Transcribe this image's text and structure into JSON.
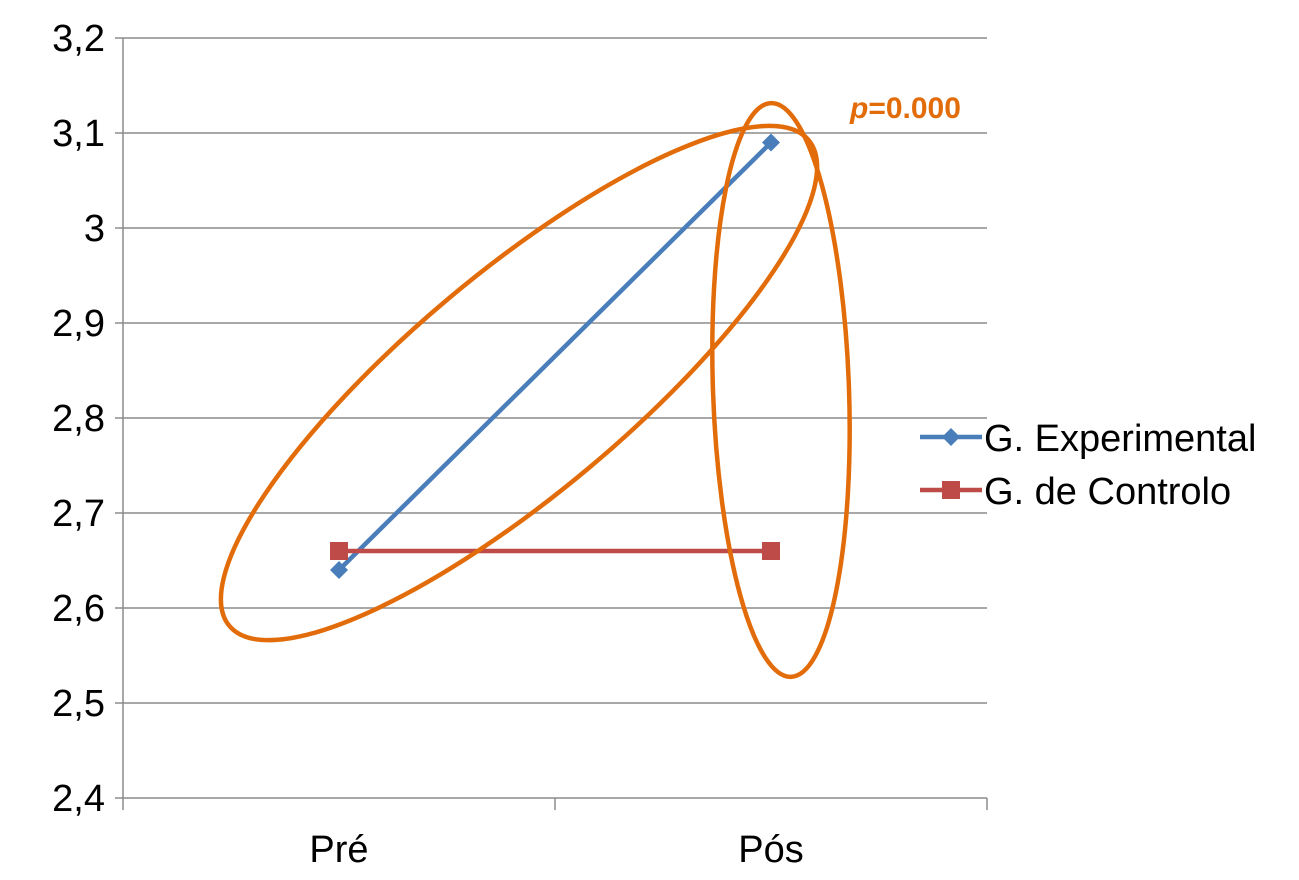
{
  "chart_data": {
    "type": "line",
    "categories": [
      "Pré",
      "Pós"
    ],
    "series": [
      {
        "name": "G. Experimental",
        "values": [
          2.64,
          3.09
        ],
        "color": "#4A7EBB",
        "marker": "diamond"
      },
      {
        "name": "G. de Controlo",
        "values": [
          2.66,
          2.66
        ],
        "color": "#BE4B48",
        "marker": "square"
      }
    ],
    "ylim": [
      2.4,
      3.2
    ],
    "yticks": [
      "2,4",
      "2,5",
      "2,6",
      "2,7",
      "2,8",
      "2,9",
      "3",
      "3,1",
      "3,2"
    ],
    "ytick_values": [
      2.4,
      2.5,
      2.6,
      2.7,
      2.8,
      2.9,
      3.0,
      3.1,
      3.2
    ],
    "grid": true,
    "legend_position": "right",
    "annotation": {
      "italic": "p",
      "rest": "=0.000",
      "color": "#E36C0A"
    },
    "highlight_color": "#E36C0A"
  }
}
